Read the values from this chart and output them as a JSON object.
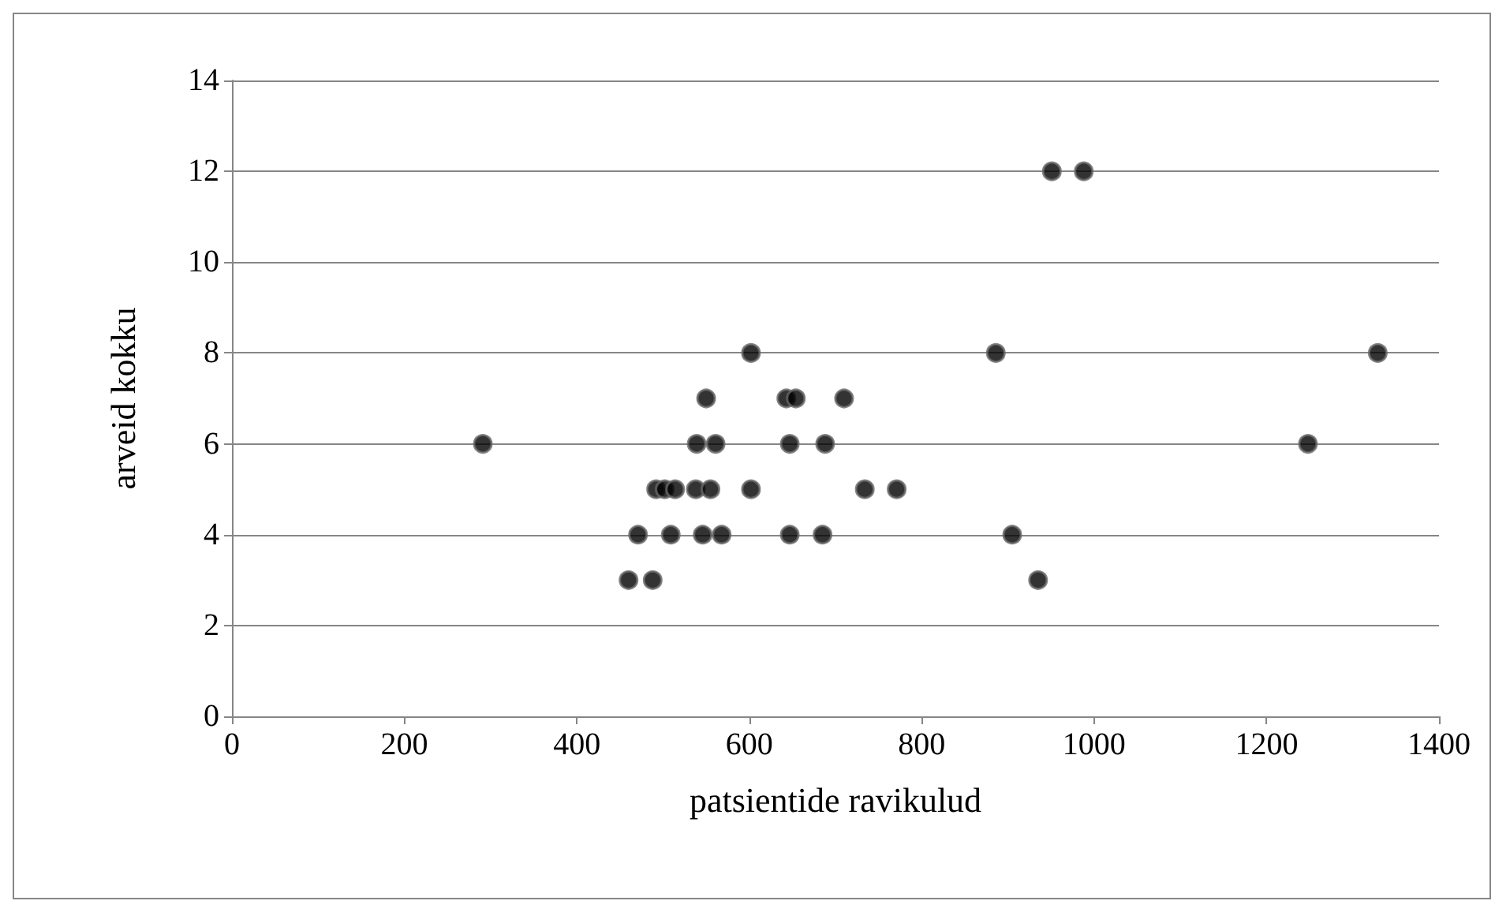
{
  "chart_data": {
    "type": "scatter",
    "xlabel": "patsientide ravikulud",
    "ylabel": "arveid kokku",
    "x": [
      291,
      460,
      471,
      488,
      492,
      502,
      509,
      514,
      538,
      539,
      546,
      550,
      555,
      561,
      568,
      602,
      602,
      643,
      647,
      647,
      654,
      685,
      688,
      710,
      734,
      771,
      886,
      905,
      935,
      951,
      988,
      1248,
      1329
    ],
    "values": [
      6,
      3,
      4,
      3,
      5,
      5,
      4,
      5,
      5,
      6,
      4,
      7,
      5,
      6,
      4,
      5,
      8,
      7,
      4,
      6,
      7,
      4,
      6,
      7,
      5,
      5,
      8,
      4,
      3,
      12,
      12,
      6,
      8
    ],
    "color": "#000000",
    "marker": "circle",
    "xlim": [
      0,
      1400
    ],
    "xticks": [
      0,
      200,
      400,
      600,
      800,
      1000,
      1200,
      1400
    ],
    "ylim": [
      0,
      14
    ],
    "yticks": [
      0,
      2,
      4,
      6,
      8,
      10,
      12,
      14
    ],
    "grid": "y"
  }
}
